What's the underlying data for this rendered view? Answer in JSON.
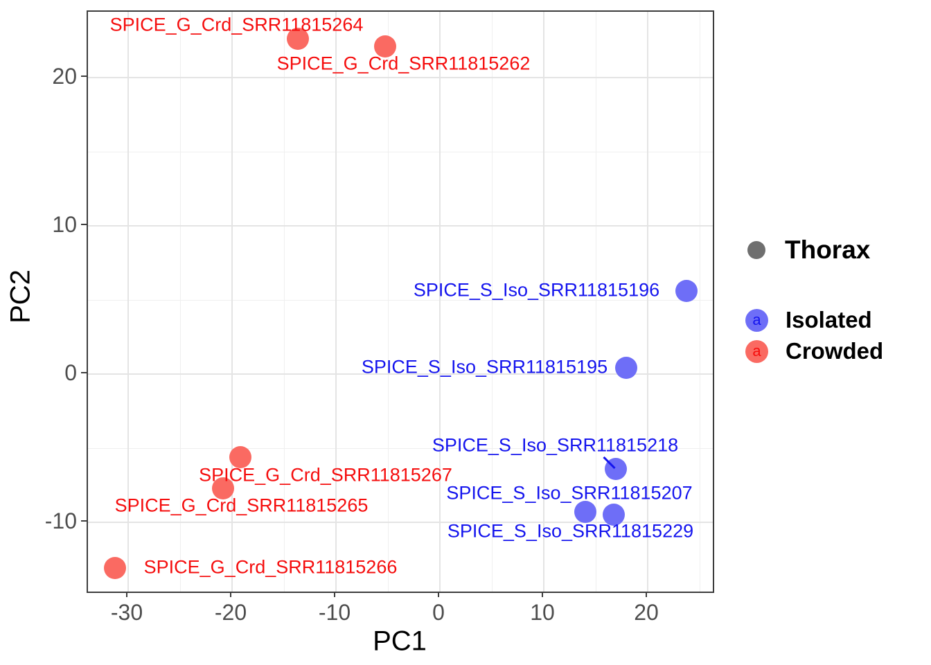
{
  "chart_data": {
    "type": "scatter",
    "xlabel": "PC1",
    "ylabel": "PC2",
    "xlim": [
      -33.9,
      26.3
    ],
    "ylim": [
      -14.7,
      24.4
    ],
    "grid": "major+minor",
    "x_major_ticks": [
      -30,
      -20,
      -10,
      0,
      10,
      20
    ],
    "x_minor_ticks": [
      -25,
      -15,
      -5,
      5,
      15,
      25
    ],
    "y_major_ticks": [
      -10,
      0,
      10,
      20
    ],
    "y_minor_ticks": [
      -5,
      5,
      15
    ],
    "series": [
      {
        "name": "Crowded",
        "point_color": "#FA6A62",
        "text_color": "#F50D0D",
        "points": [
          {
            "label": "SPICE_G_Crd_SRR11815264",
            "x": -13.7,
            "y": 22.6,
            "label_dx": -88,
            "label_dy": -20
          },
          {
            "label": "SPICE_G_Crd_SRR11815262",
            "x": -5.3,
            "y": 22.1,
            "label_dx": 27,
            "label_dy": 25
          },
          {
            "label": "SPICE_G_Crd_SRR11815267",
            "x": -19.2,
            "y": -5.6,
            "label_dx": 123,
            "label_dy": 26
          },
          {
            "label": "SPICE_G_Crd_SRR11815265",
            "x": -20.9,
            "y": -7.7,
            "label_dx": 27,
            "label_dy": 25
          },
          {
            "label": "SPICE_G_Crd_SRR11815266",
            "x": -31.3,
            "y": -13.1,
            "label_dx": 225,
            "label_dy": -1
          }
        ]
      },
      {
        "name": "Isolated",
        "point_color": "#6E6EF7",
        "text_color": "#1414EE",
        "points": [
          {
            "label": "SPICE_S_Iso_SRR11815196",
            "x": 23.7,
            "y": 5.6,
            "label_dx": -216,
            "label_dy": -1
          },
          {
            "label": "SPICE_S_Iso_SRR11815195",
            "x": 17.9,
            "y": 0.4,
            "label_dx": -204,
            "label_dy": -1
          },
          {
            "label": "SPICE_S_Iso_SRR11815218",
            "x": 16.9,
            "y": -6.4,
            "label_dx": -87,
            "label_dy": -34,
            "leader": {
              "x1": -17,
              "y1": -17,
              "x2": -1,
              "y2": -1
            }
          },
          {
            "label": "SPICE_S_Iso_SRR11815207",
            "x": 14.0,
            "y": -9.3,
            "label_dx": -23,
            "label_dy": -27
          },
          {
            "label": "SPICE_S_Iso_SRR11815229",
            "x": 16.7,
            "y": -9.5,
            "label_dx": -62,
            "label_dy": 24
          }
        ]
      }
    ]
  },
  "legend": {
    "title": "Thorax",
    "title_key_color": "#6F6F6F",
    "items": [
      {
        "label": "Isolated",
        "key_letter": "a",
        "key_fill": "#6E6EF7",
        "key_letter_color": "#1414EE"
      },
      {
        "label": "Crowded",
        "key_letter": "a",
        "key_fill": "#FA6A62",
        "key_letter_color": "#F50D0D"
      }
    ]
  },
  "colors": {
    "grid_major": "#E4E4E4",
    "grid_minor": "#EFEFEF",
    "panel_border": "#3c3c3c",
    "tick_mark": "#3c3c3c",
    "axis_text": "#4d4d4d",
    "axis_title": "#000000"
  }
}
